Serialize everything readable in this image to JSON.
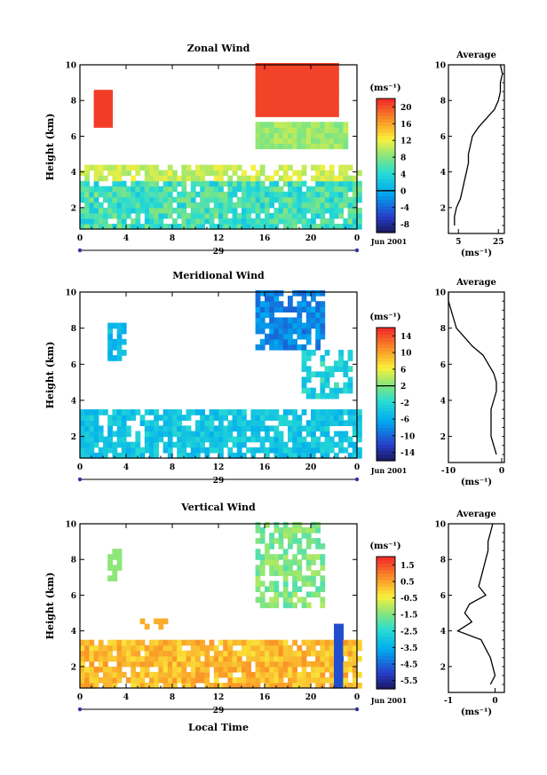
{
  "figure": {
    "month_label": "Jun 2001",
    "day_label": "29",
    "xlabel": "Local Time",
    "ylabel": "Height (km)",
    "unit_label": "(ms⁻¹)",
    "average_title": "Average",
    "average_xlabel": "(ms⁻¹)"
  },
  "chart_data": [
    {
      "type": "heatmap",
      "title": "Zonal Wind",
      "xlabel": "",
      "ylabel": "Height (km)",
      "xlim": [
        0,
        24
      ],
      "ylim": [
        0.8,
        10
      ],
      "x_ticks": [
        "0",
        "4",
        "8",
        "12",
        "16",
        "20",
        "0"
      ],
      "y_ticks": [
        "2",
        "4",
        "6",
        "8",
        "10"
      ],
      "colorbar": {
        "label": "(ms⁻¹)",
        "ticks": [
          "-8",
          "-4",
          "0",
          "4",
          "8",
          "12",
          "16",
          "20"
        ],
        "range": [
          -10,
          22
        ],
        "zero_line": 0
      },
      "average": {
        "title": "Average",
        "xlabel": "(ms⁻¹)",
        "xlim": [
          0,
          28
        ],
        "x_ticks": [
          "5",
          "25"
        ],
        "y_ticks": [
          "2",
          "4",
          "6",
          "8",
          "10"
        ],
        "height": [
          1.0,
          1.5,
          2.0,
          2.5,
          3.0,
          3.5,
          4.0,
          4.5,
          5.0,
          5.5,
          6.0,
          6.5,
          7.0,
          7.5,
          8.0,
          8.5,
          9.0,
          9.5,
          10.0
        ],
        "value": [
          3,
          3,
          4,
          6,
          7,
          8,
          9,
          10,
          10,
          11,
          12,
          15,
          19,
          23,
          25,
          26,
          26,
          27,
          26
        ]
      }
    },
    {
      "type": "heatmap",
      "title": "Meridional Wind",
      "xlabel": "",
      "ylabel": "Height (km)",
      "xlim": [
        0,
        24
      ],
      "ylim": [
        0.8,
        10
      ],
      "x_ticks": [
        "0",
        "4",
        "8",
        "12",
        "16",
        "20",
        "0"
      ],
      "y_ticks": [
        "2",
        "4",
        "6",
        "8",
        "10"
      ],
      "colorbar": {
        "label": "(ms⁻¹)",
        "ticks": [
          "-14",
          "-10",
          "-6",
          "-2",
          "2",
          "6",
          "10",
          "14"
        ],
        "range": [
          -16,
          16
        ],
        "zero_line": 2
      },
      "average": {
        "title": "Average",
        "xlabel": "(ms⁻¹)",
        "xlim": [
          -10,
          0.5
        ],
        "x_ticks": [
          "-10",
          "0"
        ],
        "y_ticks": [
          "2",
          "4",
          "6",
          "8",
          "10"
        ],
        "height": [
          1.0,
          1.5,
          2.0,
          2.5,
          3.0,
          3.5,
          4.0,
          4.5,
          5.0,
          5.5,
          6.0,
          6.5,
          7.0,
          7.5,
          8.0,
          8.5,
          9.0,
          9.5,
          10.0
        ],
        "value": [
          -1.0,
          -1.5,
          -2.0,
          -2.0,
          -2.0,
          -2.0,
          -1.5,
          -1.0,
          -1.0,
          -1.5,
          -2.5,
          -3.5,
          -5.5,
          -7.0,
          -8.5,
          -9.0,
          -9.5,
          -10.0,
          -10.0
        ]
      }
    },
    {
      "type": "heatmap",
      "title": "Vertical Wind",
      "xlabel": "Local Time",
      "ylabel": "Height (km)",
      "xlim": [
        0,
        24
      ],
      "ylim": [
        0.8,
        10
      ],
      "x_ticks": [
        "0",
        "4",
        "8",
        "12",
        "16",
        "20",
        "0"
      ],
      "y_ticks": [
        "2",
        "4",
        "6",
        "8",
        "10"
      ],
      "colorbar": {
        "label": "(ms⁻¹)",
        "ticks": [
          "-5.5",
          "-4.5",
          "-3.5",
          "-2.5",
          "-1.5",
          "-0.5",
          "0.5",
          "1.5"
        ],
        "range": [
          -6,
          2
        ],
        "zero_line": null
      },
      "average": {
        "title": "Average",
        "xlabel": "(ms⁻¹)",
        "xlim": [
          -1,
          0.2
        ],
        "x_ticks": [
          "-1",
          "0"
        ],
        "y_ticks": [
          "2",
          "4",
          "6",
          "8",
          "10"
        ],
        "height": [
          1.0,
          1.5,
          2.0,
          2.5,
          3.0,
          3.5,
          4.0,
          4.5,
          5.0,
          5.5,
          6.0,
          6.5,
          7.0,
          7.5,
          8.0,
          8.5,
          9.0,
          9.5,
          10.0
        ],
        "value": [
          -0.1,
          0.0,
          -0.05,
          -0.1,
          -0.2,
          -0.3,
          -0.8,
          -0.5,
          -0.65,
          -0.55,
          -0.2,
          -0.35,
          -0.3,
          -0.25,
          -0.2,
          -0.15,
          -0.15,
          -0.1,
          -0.05
        ]
      }
    }
  ]
}
